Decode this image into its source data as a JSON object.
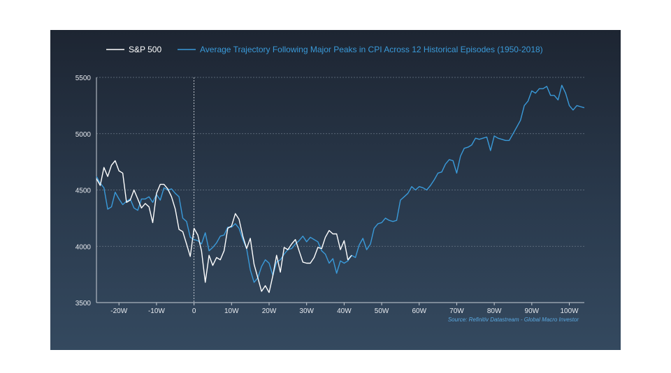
{
  "chart_data": {
    "type": "line",
    "title": "",
    "xlabel": "",
    "ylabel": "",
    "xlim": [
      -26,
      104
    ],
    "ylim": [
      3500,
      5500
    ],
    "yticks": [
      3500,
      4000,
      4500,
      5000,
      5500
    ],
    "xticks": [
      -20,
      -10,
      0,
      10,
      20,
      30,
      40,
      50,
      60,
      70,
      80,
      90,
      100
    ],
    "xtick_labels": [
      "-20W",
      "-10W",
      "0",
      "10W",
      "20W",
      "30W",
      "40W",
      "50W",
      "60W",
      "70W",
      "80W",
      "90W",
      "100W"
    ],
    "grid": "horizontal dotted",
    "legend_position": "top",
    "vline_at": 0,
    "source": "Source: Refinitiv Datastream - Global Macro Investor",
    "series": [
      {
        "name": "S&P 500",
        "color": "#ffffff",
        "start": -26,
        "values": [
          4600,
          4540,
          4700,
          4620,
          4720,
          4760,
          4670,
          4650,
          4390,
          4410,
          4500,
          4420,
          4340,
          4380,
          4350,
          4210,
          4470,
          4550,
          4550,
          4510,
          4440,
          4330,
          4150,
          4130,
          4020,
          3910,
          4160,
          4100,
          3960,
          3680,
          3920,
          3830,
          3900,
          3880,
          3960,
          4160,
          4180,
          4290,
          4240,
          4090,
          3980,
          4070,
          3840,
          3720,
          3600,
          3650,
          3590,
          3740,
          3920,
          3770,
          3990,
          3970,
          4020,
          4060,
          3960,
          3860,
          3850,
          3850,
          3900,
          3990,
          3980,
          4080,
          4140,
          4110,
          4110,
          3970,
          4050,
          3880,
          3920
        ]
      },
      {
        "name": "Average Trajectory Following Major Peaks in CPI Across 12 Historical Episodes (1950-2018)",
        "color": "#3a9ad9",
        "start": -26,
        "values": [
          4620,
          4560,
          4520,
          4330,
          4350,
          4480,
          4420,
          4370,
          4400,
          4420,
          4340,
          4320,
          4420,
          4420,
          4440,
          4390,
          4460,
          4410,
          4520,
          4500,
          4510,
          4470,
          4440,
          4250,
          4220,
          4080,
          4060,
          4050,
          4020,
          4120,
          3960,
          3990,
          4030,
          4090,
          4100,
          4170,
          4170,
          4200,
          4160,
          4060,
          3980,
          3790,
          3680,
          3720,
          3820,
          3880,
          3850,
          3740,
          3860,
          3880,
          3930,
          3970,
          3980,
          4020,
          4050,
          4090,
          4040,
          4080,
          4060,
          4040,
          3960,
          3930,
          3850,
          3890,
          3760,
          3870,
          3850,
          3870,
          3920,
          3900,
          4010,
          4070,
          3970,
          4020,
          4160,
          4200,
          4210,
          4250,
          4230,
          4220,
          4230,
          4410,
          4440,
          4470,
          4530,
          4500,
          4530,
          4520,
          4500,
          4540,
          4590,
          4650,
          4660,
          4730,
          4770,
          4760,
          4650,
          4800,
          4870,
          4880,
          4900,
          4960,
          4950,
          4960,
          4970,
          4850,
          4980,
          4960,
          4950,
          4940,
          4940,
          5000,
          5060,
          5120,
          5250,
          5290,
          5380,
          5360,
          5400,
          5400,
          5420,
          5340,
          5340,
          5300,
          5430,
          5360,
          5250,
          5210,
          5250,
          5240,
          5230
        ]
      }
    ]
  }
}
